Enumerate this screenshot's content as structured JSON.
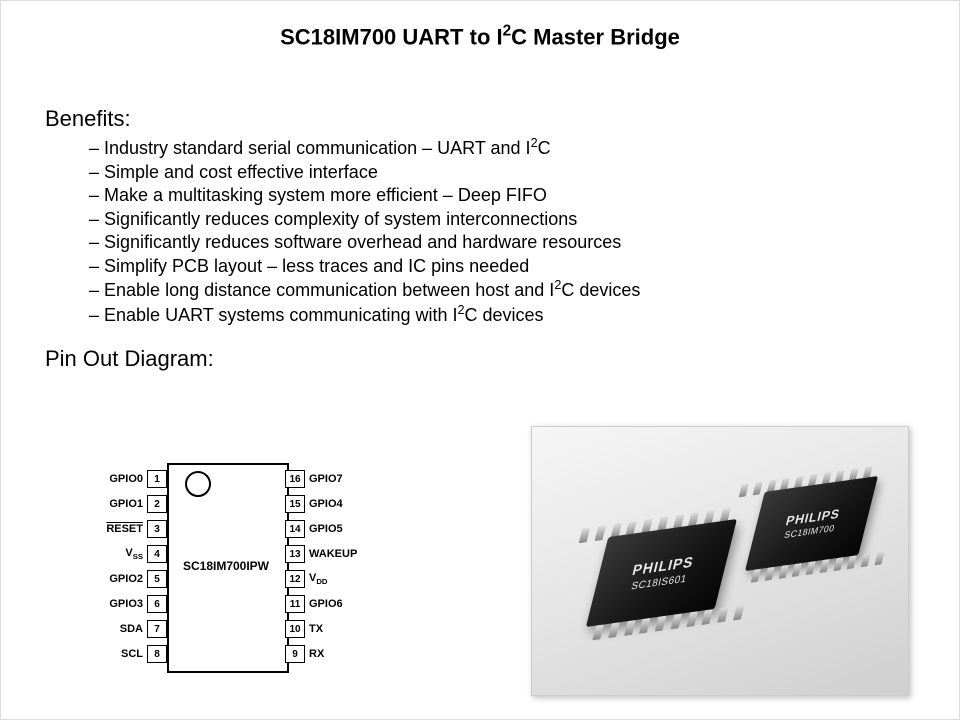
{
  "title_prefix": "SC18IM700 UART to I",
  "title_suffix": "C Master Bridge",
  "benefits_heading": "Benefits:",
  "benefits": [
    {
      "pre": "Industry standard serial communication – UART and I",
      "sup2c": true
    },
    {
      "pre": "Simple and cost effective interface"
    },
    {
      "pre": "Make a multitasking system more efficient – Deep FIFO"
    },
    {
      "pre": "Significantly reduces complexity of system interconnections"
    },
    {
      "pre": "Significantly reduces software overhead and hardware resources"
    },
    {
      "pre": "Simplify PCB layout – less traces and IC pins needed"
    },
    {
      "pre": "Enable long distance communication between host and I",
      "sup2c": true,
      "post": " devices"
    },
    {
      "pre": "Enable UART systems communicating with I",
      "sup2c": true,
      "post": " devices"
    }
  ],
  "pinout_heading": "Pin Out Diagram:",
  "chip_name": "SC18IM700IPW",
  "pins_left": [
    {
      "num": "1",
      "label": "GPIO0"
    },
    {
      "num": "2",
      "label": "GPIO1"
    },
    {
      "num": "3",
      "label": "RESET",
      "overline": true
    },
    {
      "num": "4",
      "label": "V",
      "sub": "SS"
    },
    {
      "num": "5",
      "label": "GPIO2"
    },
    {
      "num": "6",
      "label": "GPIO3"
    },
    {
      "num": "7",
      "label": "SDA"
    },
    {
      "num": "8",
      "label": "SCL"
    }
  ],
  "pins_right": [
    {
      "num": "16",
      "label": "GPIO7"
    },
    {
      "num": "15",
      "label": "GPIO4"
    },
    {
      "num": "14",
      "label": "GPIO5"
    },
    {
      "num": "13",
      "label": "WAKEUP"
    },
    {
      "num": "12",
      "label": "V",
      "sub": "DD"
    },
    {
      "num": "11",
      "label": "GPIO6"
    },
    {
      "num": "10",
      "label": "TX"
    },
    {
      "num": "9",
      "label": "RX"
    }
  ],
  "photo": {
    "brand": "PHILIPS",
    "front_part": "SC18IS601",
    "back_part": "SC18IM700",
    "pin_count": 10
  },
  "colors": {
    "text": "#000000",
    "bg": "#ffffff"
  }
}
